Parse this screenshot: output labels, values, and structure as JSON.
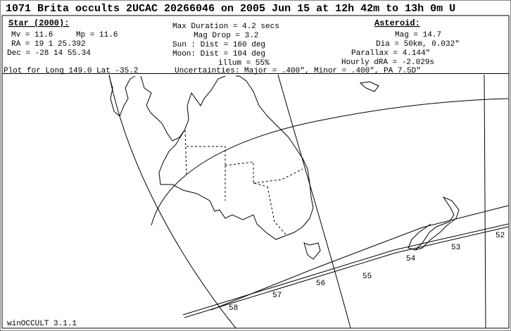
{
  "header": {
    "title": "1071 Brita occults 2UCAC 20266046 on 2005 Jun 15 at 12h 42m to 13h 0m U",
    "star": {
      "heading": "Star (2000):",
      "mv": "Mv = 11.6",
      "mp": "Mp = 11.6",
      "ra": "RA =  19  1 25.392",
      "dec": "Dec = -28 14 55.34"
    },
    "event": {
      "duration": "Max Duration = 4.2 secs",
      "mag_drop": "Mag Drop =  3.2",
      "sun": "Sun :  Dist = 160 deg",
      "moon": "Moon:  Dist = 104 deg",
      "illum": "illum = 55%"
    },
    "asteroid": {
      "heading": "Asteroid:",
      "mag": "Mag = 14.7",
      "dia": "Dia = 50km, 0.032\"",
      "parallax": "Parallax = 4.144\"",
      "hourly_dra": "Hourly dRA = -2.029s"
    },
    "plot_for": "Plot for Long 149.0  Lat -35.2",
    "uncertainties": "Uncertainties: Major = .400\", Minor = .400\", PA 7.5D\""
  },
  "map": {
    "time_labels": [
      "52",
      "53",
      "54",
      "55",
      "56",
      "57",
      "58"
    ]
  },
  "footer": "winOCCULT 3.1.1"
}
